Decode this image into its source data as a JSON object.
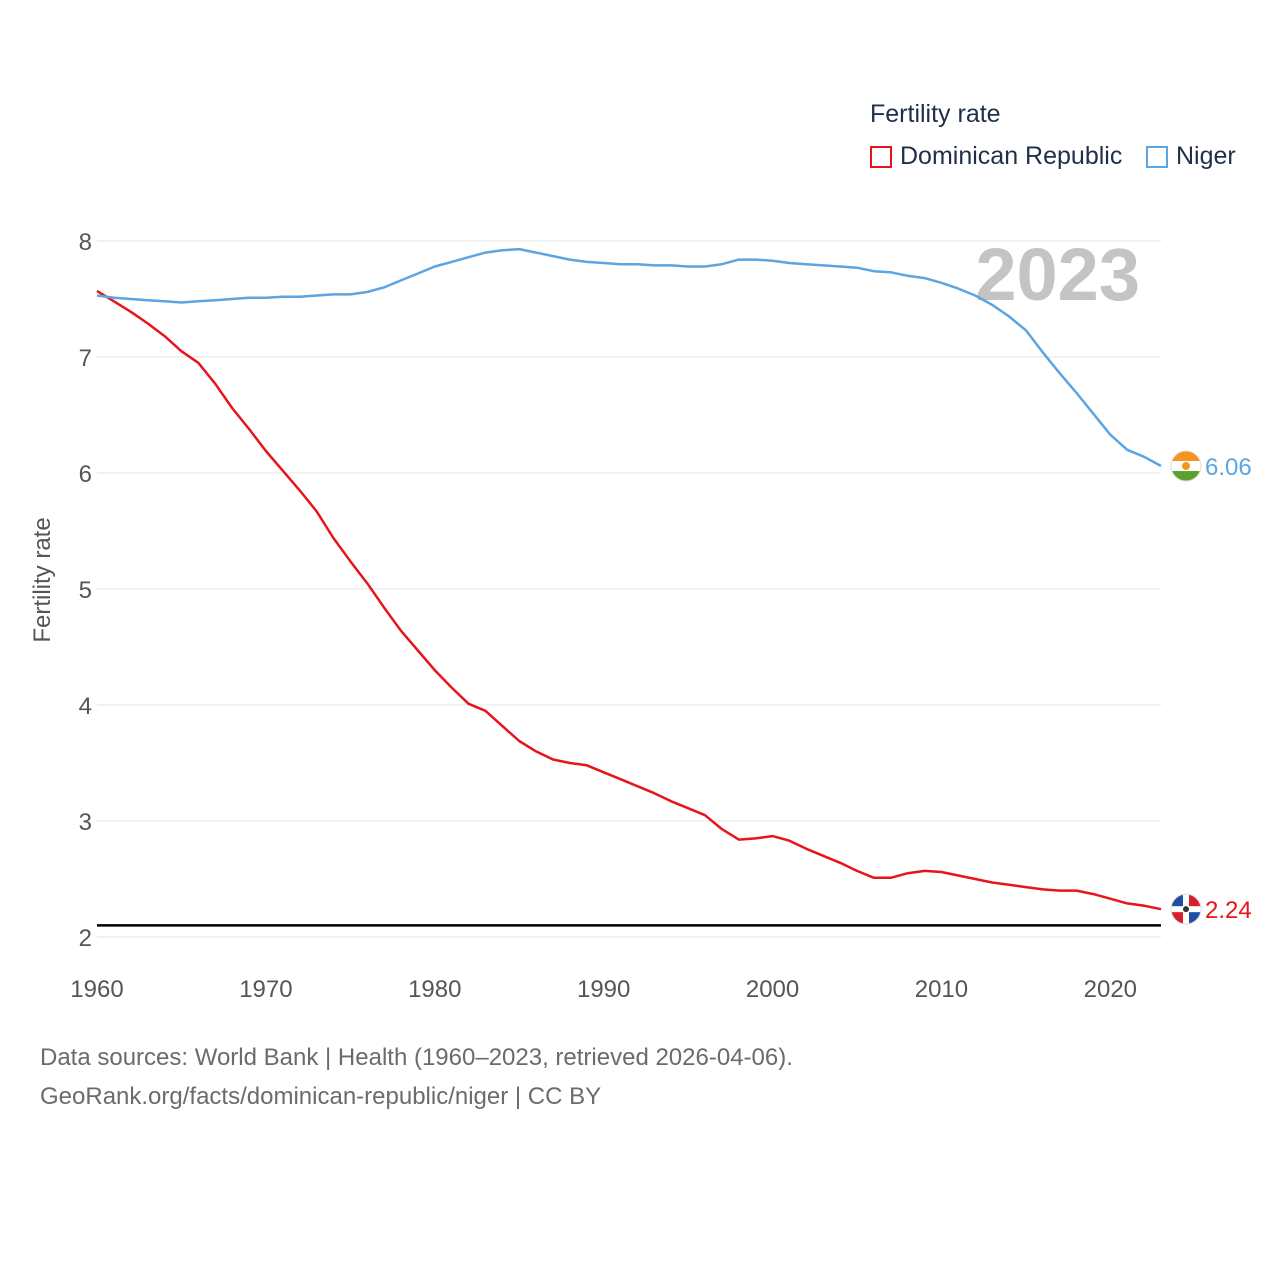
{
  "legend": {
    "title": "Fertility rate",
    "items": [
      {
        "label": "Dominican Republic",
        "color": "#e8141b"
      },
      {
        "label": "Niger",
        "color": "#5aa5e2"
      }
    ]
  },
  "year_watermark": "2023",
  "footer": {
    "line1": "Data sources: World Bank | Health (1960–2023, retrieved 2026-04-06).",
    "line2": "GeoRank.org/facts/dominican-republic/niger | CC BY"
  },
  "chart_data": {
    "type": "line",
    "ylabel": "Fertility rate",
    "xlabel": "",
    "xlim": [
      1960,
      2023
    ],
    "ylim": [
      2,
      8
    ],
    "x_ticks": [
      "1960",
      "1970",
      "1980",
      "1990",
      "2000",
      "2010",
      "2020"
    ],
    "y_ticks": [
      "2",
      "3",
      "4",
      "5",
      "6",
      "7",
      "8"
    ],
    "reference_line": 2.1,
    "x": [
      1960,
      1961,
      1962,
      1963,
      1964,
      1965,
      1966,
      1967,
      1968,
      1969,
      1970,
      1971,
      1972,
      1973,
      1974,
      1975,
      1976,
      1977,
      1978,
      1979,
      1980,
      1981,
      1982,
      1983,
      1984,
      1985,
      1986,
      1987,
      1988,
      1989,
      1990,
      1991,
      1992,
      1993,
      1994,
      1995,
      1996,
      1997,
      1998,
      1999,
      2000,
      2001,
      2002,
      2003,
      2004,
      2005,
      2006,
      2007,
      2008,
      2009,
      2010,
      2011,
      2012,
      2013,
      2014,
      2015,
      2016,
      2017,
      2018,
      2019,
      2020,
      2021,
      2022,
      2023
    ],
    "series": [
      {
        "name": "Dominican Republic",
        "color": "#e8141b",
        "end_label": "2.24",
        "values": [
          7.57,
          7.48,
          7.39,
          7.29,
          7.18,
          7.05,
          6.95,
          6.77,
          6.56,
          6.38,
          6.19,
          6.02,
          5.85,
          5.67,
          5.44,
          5.24,
          5.05,
          4.84,
          4.64,
          4.47,
          4.3,
          4.15,
          4.01,
          3.95,
          3.82,
          3.69,
          3.6,
          3.53,
          3.5,
          3.48,
          3.42,
          3.36,
          3.3,
          3.24,
          3.17,
          3.11,
          3.05,
          2.93,
          2.84,
          2.85,
          2.87,
          2.83,
          2.76,
          2.7,
          2.64,
          2.57,
          2.51,
          2.51,
          2.55,
          2.57,
          2.56,
          2.53,
          2.5,
          2.47,
          2.45,
          2.43,
          2.41,
          2.4,
          2.4,
          2.37,
          2.33,
          2.29,
          2.27,
          2.24
        ]
      },
      {
        "name": "Niger",
        "color": "#5aa5e2",
        "end_label": "6.06",
        "values": [
          7.53,
          7.51,
          7.5,
          7.49,
          7.48,
          7.47,
          7.48,
          7.49,
          7.5,
          7.51,
          7.51,
          7.52,
          7.52,
          7.53,
          7.54,
          7.54,
          7.56,
          7.6,
          7.66,
          7.72,
          7.78,
          7.82,
          7.86,
          7.9,
          7.92,
          7.93,
          7.9,
          7.87,
          7.84,
          7.82,
          7.81,
          7.8,
          7.8,
          7.79,
          7.79,
          7.78,
          7.78,
          7.8,
          7.84,
          7.84,
          7.83,
          7.81,
          7.8,
          7.79,
          7.78,
          7.77,
          7.74,
          7.73,
          7.7,
          7.68,
          7.64,
          7.59,
          7.53,
          7.45,
          7.35,
          7.23,
          7.04,
          6.86,
          6.69,
          6.51,
          6.33,
          6.2,
          6.14,
          6.06
        ]
      }
    ]
  }
}
